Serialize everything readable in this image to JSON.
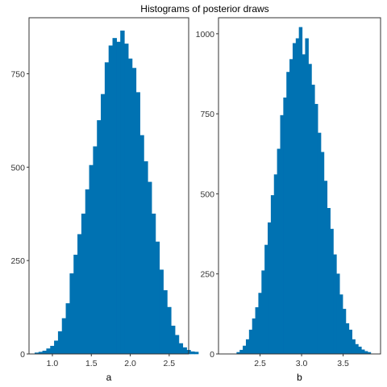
{
  "chart_data": {
    "title": "Histograms of posterior draws",
    "color": "#0072B2",
    "panels": [
      {
        "type": "bar",
        "xlabel": "a",
        "xlim": [
          0.7,
          2.75
        ],
        "ylim": [
          0,
          900
        ],
        "xticks": [
          1.0,
          1.5,
          2.0,
          2.5
        ],
        "xtick_labels": [
          "1.0",
          "1.5",
          "2.0",
          "2.5"
        ],
        "yticks": [
          0,
          250,
          500,
          750
        ],
        "ytick_labels": [
          "0",
          "250",
          "500",
          "750"
        ],
        "bin_width": 0.05,
        "bin_start": 0.775,
        "values": [
          3,
          5,
          8,
          14,
          21,
          35,
          60,
          95,
          135,
          215,
          265,
          320,
          375,
          440,
          505,
          555,
          625,
          695,
          780,
          825,
          845,
          835,
          865,
          830,
          790,
          765,
          700,
          585,
          515,
          460,
          375,
          300,
          225,
          170,
          125,
          75,
          50,
          28,
          17,
          10,
          6,
          5
        ]
      },
      {
        "type": "bar",
        "xlabel": "b",
        "xlim": [
          2.0,
          3.95
        ],
        "ylim": [
          0,
          1050
        ],
        "xticks": [
          2.5,
          3.0,
          3.5
        ],
        "xtick_labels": [
          "2.5",
          "3.0",
          "3.5"
        ],
        "yticks": [
          0,
          250,
          500,
          750,
          1000
        ],
        "ytick_labels": [
          "0",
          "250",
          "500",
          "750",
          "1000"
        ],
        "bin_width": 0.0375,
        "bin_start": 2.22,
        "values": [
          5,
          12,
          25,
          45,
          75,
          110,
          145,
          190,
          260,
          340,
          410,
          495,
          560,
          640,
          745,
          800,
          880,
          920,
          970,
          985,
          1020,
          935,
          985,
          905,
          840,
          780,
          690,
          630,
          540,
          455,
          390,
          310,
          250,
          185,
          140,
          95,
          75,
          45,
          30,
          22,
          13,
          8,
          5
        ]
      }
    ]
  }
}
